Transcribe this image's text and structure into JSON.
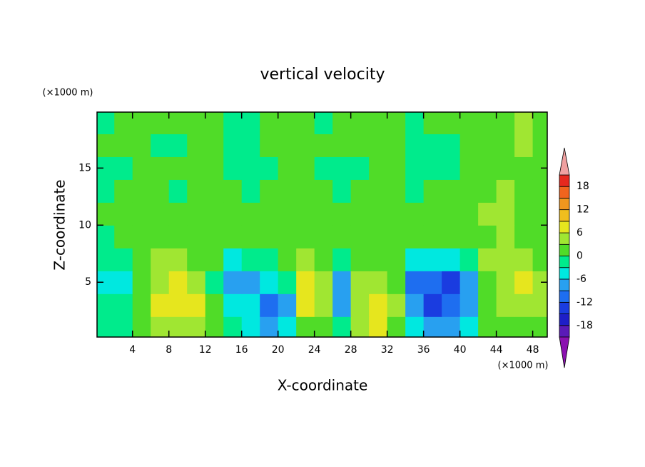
{
  "chart_data": {
    "type": "contour",
    "title": "vertical velocity",
    "x_label": "X-coordinate",
    "y_label": "Z-coordinate",
    "x_units": "(×1000 m)",
    "y_units": "(×1000 m)",
    "xlim": [
      0.1,
      49.6
    ],
    "xticks": [
      4,
      8,
      12,
      16,
      20,
      24,
      28,
      32,
      36,
      40,
      44,
      48
    ],
    "ylim": [
      0.2,
      19.9
    ],
    "yticks": [
      5,
      10,
      15
    ],
    "x": [
      1,
      3,
      5,
      7,
      9,
      11,
      13,
      15,
      17,
      19,
      21,
      23,
      25,
      27,
      29,
      31,
      33,
      35,
      37,
      39,
      41,
      43,
      45,
      47,
      49
    ],
    "y": [
      1,
      3,
      5,
      7,
      9,
      11,
      13,
      15,
      17,
      19
    ],
    "z": [
      [
        -1,
        -1,
        1,
        3,
        5,
        4,
        0,
        -3,
        -4,
        -8,
        -6,
        2,
        1,
        -2,
        4,
        6,
        2,
        -4,
        -8,
        -9,
        -5,
        0,
        2,
        2,
        1
      ],
      [
        -3,
        -3,
        2,
        6,
        8,
        7,
        1,
        -5,
        -6,
        -11,
        -9,
        7,
        5,
        -7,
        5,
        8,
        3,
        -9,
        -14,
        -12,
        -7,
        1,
        3,
        4,
        3
      ],
      [
        -4,
        -4,
        1,
        5,
        6,
        5,
        -1,
        -9,
        -7,
        -5,
        -3,
        6,
        4,
        -8,
        3,
        5,
        1,
        -10,
        -12,
        -14,
        -8,
        2,
        5,
        6,
        4
      ],
      [
        -3,
        -2,
        2,
        3,
        3,
        2,
        0,
        -4,
        -3,
        -2,
        1,
        4,
        2,
        -3,
        1,
        2,
        0,
        -4,
        -6,
        -6,
        -3,
        3,
        5,
        4,
        2
      ],
      [
        -1,
        0,
        1,
        2,
        1,
        1,
        0,
        1,
        0,
        0,
        1,
        2,
        1,
        0,
        0,
        1,
        0,
        1,
        0,
        1,
        1,
        2,
        3,
        2,
        1
      ],
      [
        1,
        1,
        0,
        1,
        1,
        0,
        1,
        1,
        1,
        0,
        1,
        1,
        0,
        1,
        0,
        1,
        0,
        0,
        1,
        1,
        2,
        3,
        3,
        2,
        1
      ],
      [
        -1,
        0,
        1,
        0,
        -1,
        0,
        1,
        0,
        -1,
        0,
        1,
        1,
        0,
        -1,
        0,
        1,
        0,
        -1,
        0,
        0,
        1,
        2,
        3,
        2,
        1
      ],
      [
        -1,
        -1,
        0,
        0,
        1,
        1,
        0,
        -1,
        -1,
        -1,
        1,
        0,
        -1,
        -1,
        -1,
        0,
        0,
        -1,
        -2,
        -1,
        0,
        1,
        1,
        1,
        0
      ],
      [
        0,
        1,
        0,
        -1,
        -1,
        0,
        1,
        -1,
        -1,
        0,
        1,
        1,
        0,
        0,
        0,
        1,
        0,
        -1,
        -1,
        -1,
        0,
        1,
        2,
        3,
        1
      ],
      [
        -1,
        0,
        1,
        0,
        0,
        1,
        0,
        -1,
        -1,
        0,
        1,
        0,
        -1,
        0,
        1,
        0,
        0,
        -1,
        0,
        0,
        1,
        1,
        2,
        3,
        2
      ]
    ],
    "levels": [
      -21,
      -18,
      -15,
      -12,
      -9,
      -6,
      -3,
      0,
      3,
      6,
      9,
      12,
      15,
      18,
      21
    ],
    "colors": [
      "#8b10b0",
      "#5a1ab8",
      "#1e1ec8",
      "#1a3ce0",
      "#1e6ef0",
      "#28a0f0",
      "#00e8e0",
      "#00eb8c",
      "#50dc28",
      "#a0e632",
      "#e6e61e",
      "#f0be1e",
      "#f0961e",
      "#f0641e",
      "#e6281e",
      "#f0a0a0"
    ],
    "colorbar_ticks": [
      18,
      12,
      6,
      0,
      -6,
      -12,
      -18
    ]
  }
}
